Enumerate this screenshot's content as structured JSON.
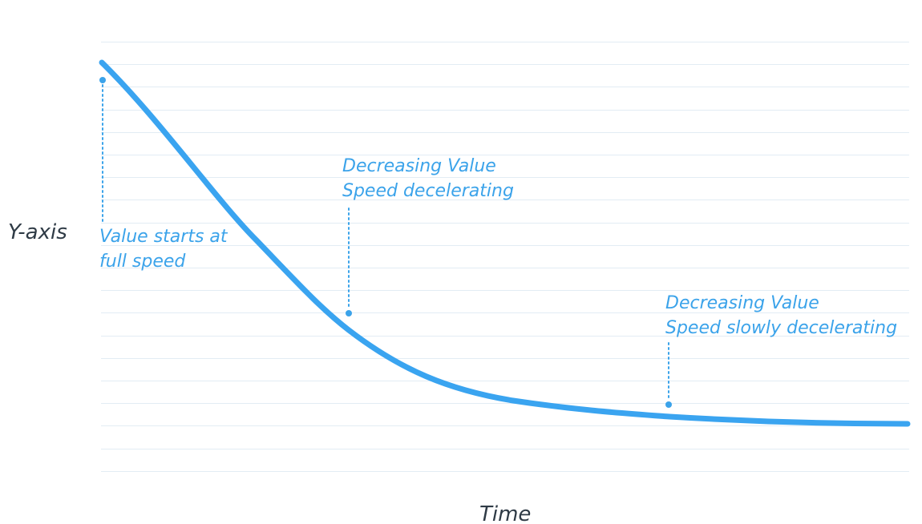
{
  "axes": {
    "y_label": "Y-axis",
    "x_label": "Time"
  },
  "annotations": [
    {
      "line1": "Value starts at",
      "line2": "full speed"
    },
    {
      "line1": "Decreasing Value",
      "line2": "Speed decelerating"
    },
    {
      "line1": "Decreasing Value",
      "line2": "Speed slowly decelerating"
    }
  ],
  "colors": {
    "curve": "#3aa4f0",
    "annotation": "#3ba3ea",
    "grid": "#e2ecf4",
    "axis_text": "#2f3b46"
  },
  "chart_data": {
    "type": "line",
    "title": "",
    "xlabel": "Time",
    "ylabel": "Y-axis",
    "grid": "horizontal lines",
    "series": [
      {
        "values_description_note": "",
        "x": [
          0,
          0.1,
          0.2,
          0.3,
          0.4,
          0.5,
          0.6,
          0.7,
          0.8,
          0.9,
          1.0
        ],
        "y": [
          1.0,
          0.82,
          0.58,
          0.36,
          0.22,
          0.15,
          0.11,
          0.09,
          0.075,
          0.07,
          0.068
        ]
      }
    ]
  }
}
